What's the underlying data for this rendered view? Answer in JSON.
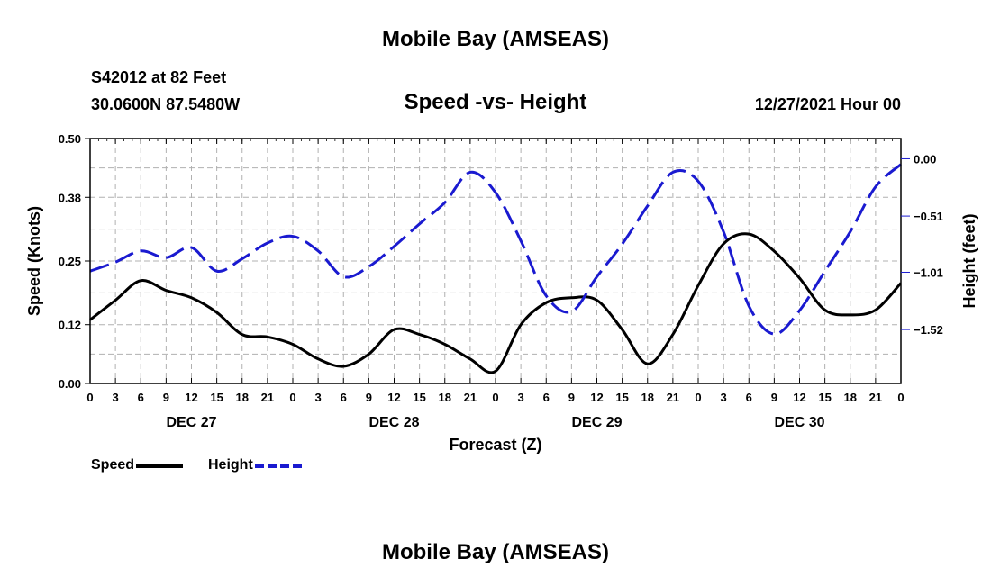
{
  "header": {
    "title_top": "Mobile Bay (AMSEAS)",
    "station": "S42012 at 82 Feet",
    "coords": "30.0600N  87.5480W",
    "chart_title": "Speed -vs- Height",
    "date_label": "12/27/2021 Hour 00",
    "title_bottom": "Mobile Bay (AMSEAS)"
  },
  "legend": {
    "speed_label": "Speed",
    "height_label": "Height"
  },
  "colors": {
    "speed": "#000000",
    "height": "#1a1ad0",
    "grid": "#b0b0b0"
  },
  "chart_data": {
    "type": "line",
    "title": "Speed -vs- Height",
    "xlabel": "Forecast (Z)",
    "ylabel_left": "Speed (Knots)",
    "ylabel_right": "Height (feet)",
    "x_range": [
      0,
      96
    ],
    "x_tick_labels": [
      "0",
      "3",
      "6",
      "9",
      "12",
      "15",
      "18",
      "21",
      "0",
      "3",
      "6",
      "9",
      "12",
      "15",
      "18",
      "21",
      "0",
      "3",
      "6",
      "9",
      "12",
      "15",
      "18",
      "21",
      "0",
      "3",
      "6",
      "9",
      "12",
      "15",
      "18",
      "21",
      "0"
    ],
    "day_labels": [
      {
        "label": "DEC 27",
        "x": 12
      },
      {
        "label": "DEC 28",
        "x": 36
      },
      {
        "label": "DEC 29",
        "x": 60
      },
      {
        "label": "DEC 30",
        "x": 84
      }
    ],
    "y_left": {
      "range": [
        0,
        0.5
      ],
      "ticks": [
        0.0,
        0.12,
        0.25,
        0.38,
        0.5
      ],
      "tick_labels": [
        "0.00",
        "0.12",
        "0.25",
        "0.38",
        "0.50"
      ]
    },
    "y_right": {
      "range": [
        -2.0,
        0.18
      ],
      "ticks": [
        0.0,
        -0.51,
        -1.01,
        -1.52
      ],
      "tick_labels": [
        "0.00",
        "−0.51",
        "−1.01",
        "−1.52"
      ]
    },
    "series": [
      {
        "name": "Speed",
        "axis": "left",
        "style": "solid",
        "x": [
          0,
          3,
          6,
          9,
          12,
          15,
          18,
          21,
          24,
          27,
          30,
          33,
          36,
          39,
          42,
          45,
          48,
          51,
          54,
          57,
          60,
          63,
          66,
          69,
          72,
          75,
          78,
          81,
          84,
          87,
          90,
          93,
          96
        ],
        "values": [
          0.13,
          0.17,
          0.21,
          0.19,
          0.175,
          0.145,
          0.1,
          0.095,
          0.08,
          0.05,
          0.035,
          0.06,
          0.11,
          0.1,
          0.08,
          0.05,
          0.025,
          0.12,
          0.165,
          0.175,
          0.17,
          0.11,
          0.04,
          0.1,
          0.2,
          0.285,
          0.305,
          0.27,
          0.215,
          0.15,
          0.14,
          0.15,
          0.205
        ]
      },
      {
        "name": "Height",
        "axis": "right",
        "style": "dashed",
        "x": [
          0,
          3,
          6,
          9,
          12,
          15,
          18,
          21,
          24,
          27,
          30,
          33,
          36,
          39,
          42,
          45,
          48,
          51,
          54,
          57,
          60,
          63,
          66,
          69,
          72,
          75,
          78,
          81,
          84,
          87,
          90,
          93,
          96
        ],
        "values": [
          -1.0,
          -0.92,
          -0.82,
          -0.88,
          -0.79,
          -1.0,
          -0.89,
          -0.75,
          -0.69,
          -0.82,
          -1.05,
          -0.96,
          -0.78,
          -0.58,
          -0.39,
          -0.12,
          -0.3,
          -0.73,
          -1.22,
          -1.36,
          -1.05,
          -0.76,
          -0.42,
          -0.12,
          -0.2,
          -0.65,
          -1.31,
          -1.56,
          -1.35,
          -1.0,
          -0.65,
          -0.25,
          -0.05
        ]
      }
    ]
  }
}
